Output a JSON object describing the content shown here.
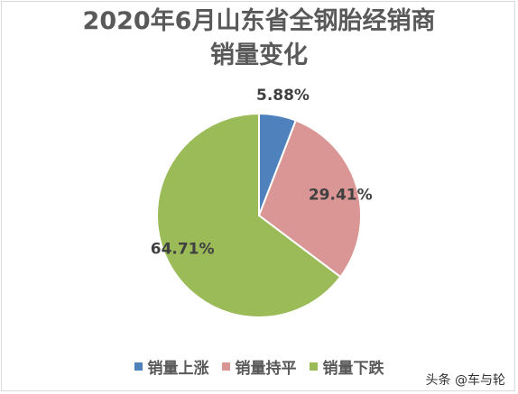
{
  "chart_data": {
    "type": "pie",
    "title_line1": "2020年6月山东省全钢胎经销商",
    "title_line2": "销量变化",
    "slices": [
      {
        "label": "销量上涨",
        "value": 5.88,
        "display": "5.88%",
        "color": "#4F81BD"
      },
      {
        "label": "销量持平",
        "value": 29.41,
        "display": "29.41%",
        "color": "#D99694"
      },
      {
        "label": "销量下跌",
        "value": 64.71,
        "display": "64.71%",
        "color": "#9BBB59"
      }
    ],
    "legend_position": "bottom"
  },
  "watermark": "头条 @车与轮"
}
